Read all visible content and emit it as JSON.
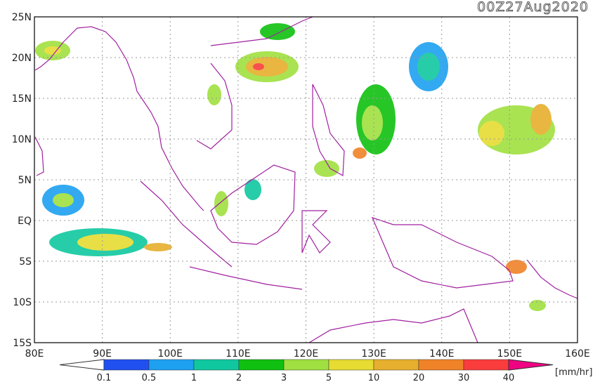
{
  "title": "00Z27Aug2020",
  "map": {
    "lat_ticks": [
      {
        "value": 25,
        "label": "25N"
      },
      {
        "value": 20,
        "label": "20N"
      },
      {
        "value": 15,
        "label": "15N"
      },
      {
        "value": 10,
        "label": "10N"
      },
      {
        "value": 5,
        "label": "5N"
      },
      {
        "value": 0,
        "label": "EQ"
      },
      {
        "value": -5,
        "label": "5S"
      },
      {
        "value": -10,
        "label": "10S"
      },
      {
        "value": -15,
        "label": "15S"
      }
    ],
    "lon_ticks": [
      {
        "value": 80,
        "label": "80E"
      },
      {
        "value": 90,
        "label": "90E"
      },
      {
        "value": 100,
        "label": "100E"
      },
      {
        "value": 110,
        "label": "110E"
      },
      {
        "value": 120,
        "label": "120E"
      },
      {
        "value": 130,
        "label": "130E"
      },
      {
        "value": 140,
        "label": "140E"
      },
      {
        "value": 150,
        "label": "150E"
      },
      {
        "value": 160,
        "label": "160E"
      }
    ]
  },
  "colorbar": {
    "levels": [
      0.1,
      0.5,
      1,
      2,
      3,
      5,
      10,
      20,
      30,
      40
    ],
    "colors": [
      "#ffffff",
      "#2050f0",
      "#1ea0f0",
      "#10c8a0",
      "#10c010",
      "#a0e040",
      "#e6dc32",
      "#e6af2d",
      "#f08228",
      "#fa3c3c",
      "#f00082"
    ],
    "unit": "[mm/hr]"
  }
}
